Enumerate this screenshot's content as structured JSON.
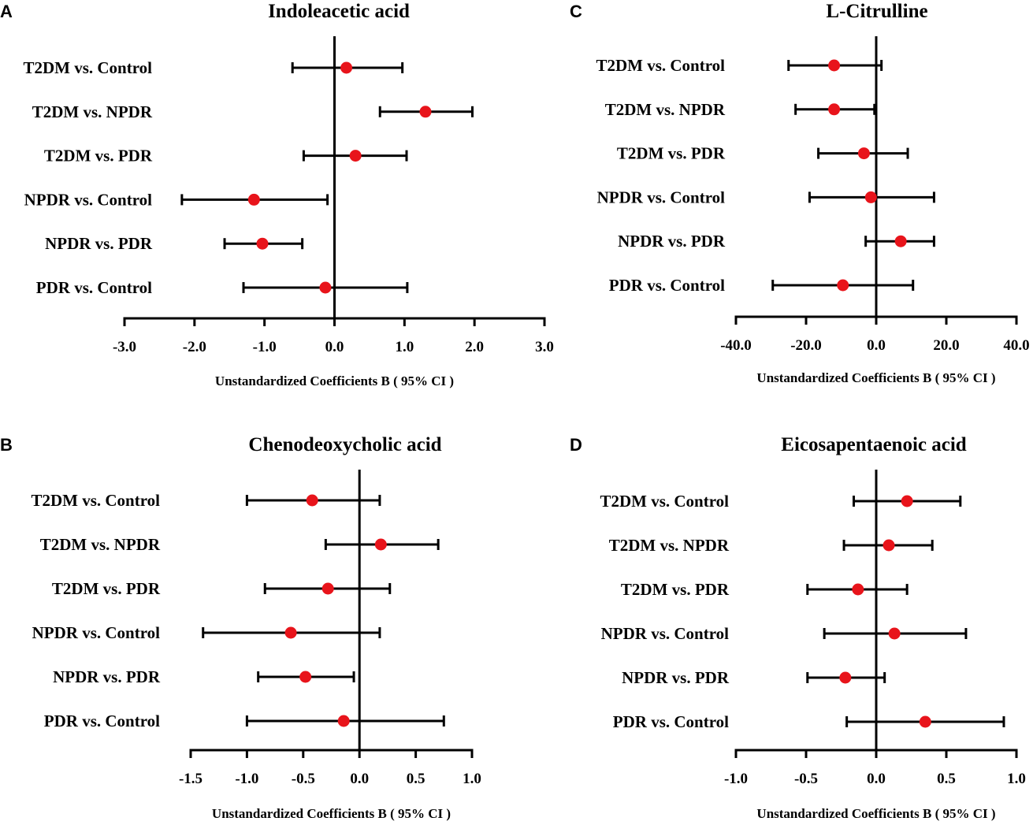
{
  "figure": {
    "accent_color": "#e8141b",
    "line_color": "#000000"
  },
  "chart_data": [
    {
      "panel": "A",
      "type": "forest",
      "title": "Indoleacetic acid",
      "xlabel": "Unstandardized Coefficients B ( 95% CI )",
      "xlim": [
        -3.0,
        3.0
      ],
      "xticks": [
        -3.0,
        -2.0,
        -1.0,
        0.0,
        1.0,
        2.0,
        3.0
      ],
      "xtick_labels": [
        "-3.0",
        "-2.0",
        "-1.0",
        "0.0",
        "1.0",
        "2.0",
        "3.0"
      ],
      "rows": [
        {
          "label": "T2DM vs. Control",
          "estimate": 0.17,
          "lower": -0.6,
          "upper": 0.97
        },
        {
          "label": "T2DM vs. NPDR",
          "estimate": 1.3,
          "lower": 0.65,
          "upper": 1.97
        },
        {
          "label": "T2DM vs. PDR",
          "estimate": 0.3,
          "lower": -0.44,
          "upper": 1.03
        },
        {
          "label": "NPDR vs. Control",
          "estimate": -1.15,
          "lower": -2.18,
          "upper": -0.1
        },
        {
          "label": "NPDR vs. PDR",
          "estimate": -1.03,
          "lower": -1.57,
          "upper": -0.46
        },
        {
          "label": "PDR vs. Control",
          "estimate": -0.13,
          "lower": -1.3,
          "upper": 1.04
        }
      ]
    },
    {
      "panel": "B",
      "type": "forest",
      "title": "Chenodeoxycholic acid",
      "xlabel": "Unstandardized Coefficients B ( 95% CI )",
      "xlim": [
        -1.5,
        1.0
      ],
      "xticks": [
        -1.5,
        -1.0,
        -0.5,
        0.0,
        0.5,
        1.0
      ],
      "xtick_labels": [
        "-1.5",
        "-1.0",
        "-0.5",
        "0.0",
        "0.5",
        "1.0"
      ],
      "rows": [
        {
          "label": "T2DM vs. Control",
          "estimate": -0.42,
          "lower": -1.0,
          "upper": 0.18
        },
        {
          "label": "T2DM vs. NPDR",
          "estimate": 0.19,
          "lower": -0.3,
          "upper": 0.7
        },
        {
          "label": "T2DM vs. PDR",
          "estimate": -0.28,
          "lower": -0.84,
          "upper": 0.27
        },
        {
          "label": "NPDR vs. Control",
          "estimate": -0.61,
          "lower": -1.39,
          "upper": 0.18
        },
        {
          "label": "NPDR vs. PDR",
          "estimate": -0.48,
          "lower": -0.9,
          "upper": -0.05
        },
        {
          "label": "PDR vs. Control",
          "estimate": -0.14,
          "lower": -1.0,
          "upper": 0.75
        }
      ]
    },
    {
      "panel": "C",
      "type": "forest",
      "title": "L-Citrulline",
      "xlabel": "Unstandardized Coefficients B ( 95% CI )",
      "xlim": [
        -40.0,
        40.0
      ],
      "xticks": [
        -40.0,
        -20.0,
        0.0,
        20.0,
        40.0
      ],
      "xtick_labels": [
        "-40.0",
        "-20.0",
        "0.0",
        "20.0",
        "40.0"
      ],
      "rows": [
        {
          "label": "T2DM vs. Control",
          "estimate": -12.0,
          "lower": -25.0,
          "upper": 1.5
        },
        {
          "label": "T2DM vs. NPDR",
          "estimate": -12.0,
          "lower": -23.0,
          "upper": -0.5
        },
        {
          "label": "T2DM vs. PDR",
          "estimate": -3.5,
          "lower": -16.5,
          "upper": 9.0
        },
        {
          "label": "NPDR vs. Control",
          "estimate": -1.5,
          "lower": -19.0,
          "upper": 16.5
        },
        {
          "label": "NPDR vs. PDR",
          "estimate": 7.0,
          "lower": -3.0,
          "upper": 16.5
        },
        {
          "label": "PDR vs. Control",
          "estimate": -9.5,
          "lower": -29.5,
          "upper": 10.5
        }
      ]
    },
    {
      "panel": "D",
      "type": "forest",
      "title": "Eicosapentaenoic acid",
      "xlabel": "Unstandardized Coefficients B ( 95% CI )",
      "xlim": [
        -1.0,
        1.0
      ],
      "xticks": [
        -1.0,
        -0.5,
        0.0,
        0.5,
        1.0
      ],
      "xtick_labels": [
        "-1.0",
        "-0.5",
        "0.0",
        "0.5",
        "1.0"
      ],
      "rows": [
        {
          "label": "T2DM vs. Control",
          "estimate": 0.22,
          "lower": -0.16,
          "upper": 0.6
        },
        {
          "label": "T2DM vs. NPDR",
          "estimate": 0.09,
          "lower": -0.23,
          "upper": 0.4
        },
        {
          "label": "T2DM vs. PDR",
          "estimate": -0.13,
          "lower": -0.49,
          "upper": 0.22
        },
        {
          "label": "NPDR vs. Control",
          "estimate": 0.13,
          "lower": -0.37,
          "upper": 0.64
        },
        {
          "label": "NPDR vs. PDR",
          "estimate": -0.22,
          "lower": -0.49,
          "upper": 0.06
        },
        {
          "label": "PDR vs. Control",
          "estimate": 0.35,
          "lower": -0.21,
          "upper": 0.91
        }
      ]
    }
  ]
}
